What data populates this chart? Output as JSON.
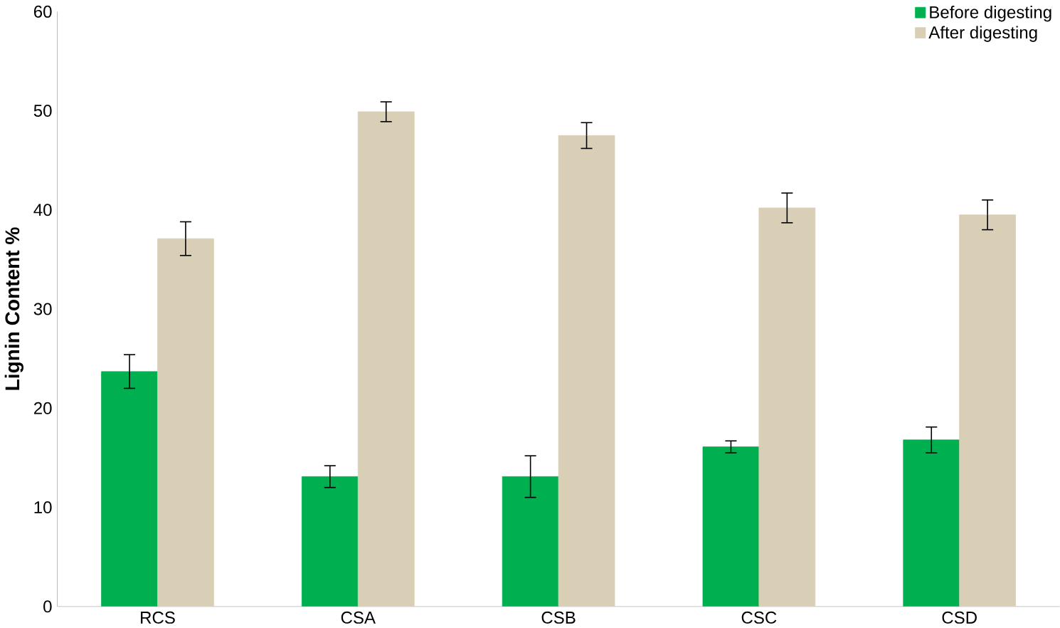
{
  "chart_data": {
    "type": "bar",
    "ylabel": "Lignin Content  %",
    "categories": [
      "RCS",
      "CSA",
      "CSB",
      "CSC",
      "CSD"
    ],
    "series": [
      {
        "name": "Before digesting",
        "color": "#00b050",
        "values": [
          23.7,
          13.1,
          13.1,
          16.1,
          16.8
        ],
        "errors": [
          1.7,
          1.1,
          2.1,
          0.6,
          1.3
        ]
      },
      {
        "name": "After digesting",
        "color": "#d9cfb6",
        "values": [
          37.1,
          49.9,
          47.5,
          40.2,
          39.5
        ],
        "errors": [
          1.7,
          1.0,
          1.3,
          1.5,
          1.5
        ]
      }
    ],
    "ylim": [
      0,
      60
    ],
    "yticks": [
      0,
      10,
      20,
      30,
      40,
      50,
      60
    ],
    "grid": false,
    "legend": "top right"
  }
}
